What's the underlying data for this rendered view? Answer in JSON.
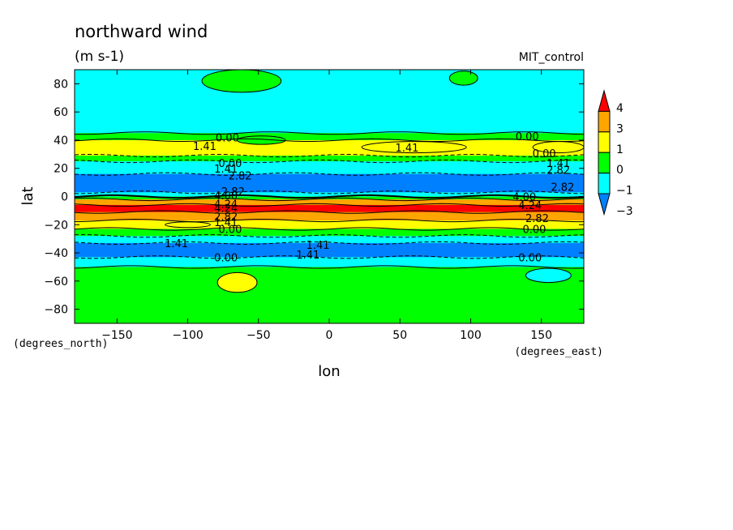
{
  "chart_data": {
    "type": "contour-map",
    "title": "northward wind",
    "units": "(m s-1)",
    "model": "MIT_control",
    "xlabel": "lon",
    "ylabel": "lat",
    "x_unit_label": "(degrees_east)",
    "y_unit_label": "(degrees_north)",
    "xlim": [
      -180,
      180
    ],
    "ylim": [
      -90,
      90
    ],
    "x_ticks": [
      -150,
      -100,
      -50,
      0,
      50,
      100,
      150
    ],
    "x_tick_labels": [
      "−150",
      "−100",
      "−50",
      "0",
      "50",
      "100",
      "150"
    ],
    "y_ticks": [
      80,
      60,
      40,
      20,
      0,
      -20,
      -40,
      -60,
      -80
    ],
    "y_tick_labels": [
      "80",
      "60",
      "40",
      "20",
      "0",
      "−20",
      "−40",
      "−60",
      "−80"
    ],
    "colorbar": {
      "levels": [
        4,
        3,
        1,
        0,
        -1,
        -3
      ],
      "labels": [
        "4",
        "3",
        "1",
        "0",
        "−1",
        "−3"
      ],
      "colors": [
        "#ff0000",
        "#ffa500",
        "#ffff00",
        "#00ff00",
        "#00ffff",
        "#0080ff"
      ]
    },
    "bands": [
      {
        "lat_top": 90,
        "lat_bottom": 45,
        "color": "#00ffff"
      },
      {
        "lat_top": 45,
        "lat_bottom": 40,
        "color": "#00ff00"
      },
      {
        "lat_top": 40,
        "lat_bottom": 29,
        "color": "#ffff00"
      },
      {
        "lat_top": 29,
        "lat_bottom": 25,
        "color": "#00ff00"
      },
      {
        "lat_top": 25,
        "lat_bottom": 16,
        "color": "#00ffff"
      },
      {
        "lat_top": 16,
        "lat_bottom": 3,
        "color": "#0080ff"
      },
      {
        "lat_top": 3,
        "lat_bottom": 0,
        "color": "#00ffff"
      },
      {
        "lat_top": 0,
        "lat_bottom": -2,
        "color": "#00ff00"
      },
      {
        "lat_top": -2,
        "lat_bottom": -6,
        "color": "#ffa500"
      },
      {
        "lat_top": -6,
        "lat_bottom": -11,
        "color": "#ff0000"
      },
      {
        "lat_top": -11,
        "lat_bottom": -17,
        "color": "#ffa500"
      },
      {
        "lat_top": -17,
        "lat_bottom": -23,
        "color": "#ffff00"
      },
      {
        "lat_top": -23,
        "lat_bottom": -28,
        "color": "#00ff00"
      },
      {
        "lat_top": -28,
        "lat_bottom": -33,
        "color": "#00ffff"
      },
      {
        "lat_top": -33,
        "lat_bottom": -43,
        "color": "#0080ff"
      },
      {
        "lat_top": -43,
        "lat_bottom": -50,
        "color": "#00ffff"
      },
      {
        "lat_top": -50,
        "lat_bottom": -90,
        "color": "#00ff00"
      }
    ],
    "patches": [
      {
        "lon": -48,
        "lat": 40,
        "rlon": 17,
        "rlat": 3,
        "color": "#00ff00"
      },
      {
        "lon": 60,
        "lat": 35,
        "rlon": 37,
        "rlat": 4,
        "color": "#ffff00"
      },
      {
        "lon": 162,
        "lat": 35,
        "rlon": 18,
        "rlat": 4,
        "color": "#ffff00"
      },
      {
        "lon": -62,
        "lat": 82,
        "rlon": 28,
        "rlat": 8,
        "color": "#00ff00"
      },
      {
        "lon": 95,
        "lat": 84,
        "rlon": 10,
        "rlat": 5,
        "color": "#00ff00"
      },
      {
        "lon": -65,
        "lat": -61,
        "rlon": 14,
        "rlat": 7,
        "color": "#ffff00"
      },
      {
        "lon": 155,
        "lat": -56,
        "rlon": 16,
        "rlat": 5,
        "color": "#00ffff"
      },
      {
        "lon": -100,
        "lat": -20,
        "rlon": 16,
        "rlat": 2,
        "color": "#ffff00"
      }
    ],
    "contour_labels": [
      {
        "text": "0.00",
        "lon": -72,
        "lat": 39
      },
      {
        "text": "1.41",
        "lon": -88,
        "lat": 33
      },
      {
        "text": "0.00",
        "lon": -70,
        "lat": 21
      },
      {
        "text": "1.41",
        "lon": -73,
        "lat": 17
      },
      {
        "text": "2.82",
        "lon": -63,
        "lat": 12
      },
      {
        "text": "2.82",
        "lon": -68,
        "lat": 1
      },
      {
        "text": "4.00",
        "lon": -73,
        "lat": -2
      },
      {
        "text": "4.24",
        "lon": -73,
        "lat": -8
      },
      {
        "text": "4.24",
        "lon": -73,
        "lat": -11
      },
      {
        "text": "2.82",
        "lon": -73,
        "lat": -17
      },
      {
        "text": "1.41",
        "lon": -73,
        "lat": -21
      },
      {
        "text": "0.00",
        "lon": -70,
        "lat": -26
      },
      {
        "text": "1.41",
        "lon": -108,
        "lat": -36
      },
      {
        "text": "1.41",
        "lon": -8,
        "lat": -37
      },
      {
        "text": "1.41",
        "lon": -15,
        "lat": -44
      },
      {
        "text": "0.00",
        "lon": -73,
        "lat": -46
      },
      {
        "text": "1.41",
        "lon": 55,
        "lat": 32
      },
      {
        "text": "0.00",
        "lon": 140,
        "lat": 40
      },
      {
        "text": "0.00",
        "lon": 152,
        "lat": 28
      },
      {
        "text": "1.41",
        "lon": 162,
        "lat": 21
      },
      {
        "text": "2.82",
        "lon": 162,
        "lat": 16
      },
      {
        "text": "2.82",
        "lon": 165,
        "lat": 4
      },
      {
        "text": "4.00",
        "lon": 138,
        "lat": -3
      },
      {
        "text": "4.24",
        "lon": 142,
        "lat": -9
      },
      {
        "text": "2.82",
        "lon": 147,
        "lat": -18
      },
      {
        "text": "0.00",
        "lon": 145,
        "lat": -26
      },
      {
        "text": "0.00",
        "lon": 142,
        "lat": -46
      }
    ]
  }
}
